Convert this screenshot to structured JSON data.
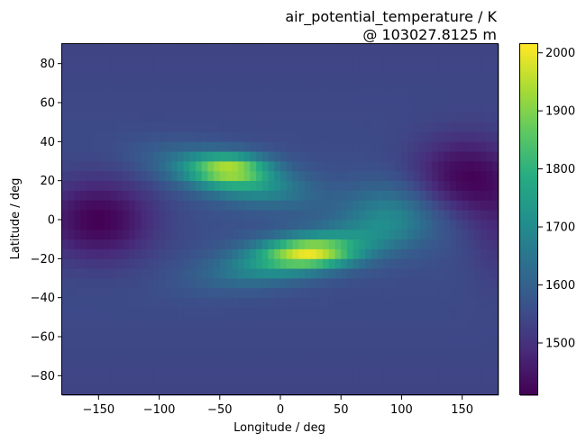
{
  "chart_data": {
    "type": "heatmap",
    "title_lines": [
      "air_potential_temperature / K",
      "@ 103027.8125 m"
    ],
    "xlabel": "Longitude / deg",
    "ylabel": "Latitude / deg",
    "xlim": [
      -180,
      180
    ],
    "ylim": [
      -90,
      90
    ],
    "xticks": [
      -150,
      -100,
      -50,
      0,
      50,
      100,
      150
    ],
    "xtick_labels": [
      "−150",
      "−100",
      "−50",
      "0",
      "50",
      "100",
      "150"
    ],
    "yticks": [
      -80,
      -60,
      -40,
      -20,
      0,
      20,
      40,
      60,
      80
    ],
    "ytick_labels": [
      "−80",
      "−60",
      "−40",
      "−20",
      "0",
      "20",
      "40",
      "60",
      "80"
    ],
    "colormap": "viridis",
    "value_range": [
      1410,
      2015
    ],
    "colorbar_ticks": [
      1500,
      1600,
      1700,
      1800,
      1900,
      2000
    ],
    "colorbar_tick_labels": [
      "1500",
      "1600",
      "1700",
      "1800",
      "1900",
      "2000"
    ],
    "background_value": 1560,
    "features": [
      {
        "name": "northern warm band",
        "lon": -40,
        "lat": 27,
        "peak": 2010
      },
      {
        "name": "southern warm band",
        "lon": 25,
        "lat": -17,
        "peak": 2015
      },
      {
        "name": "western cold core",
        "lon": -150,
        "lat": 0,
        "peak": 1410
      },
      {
        "name": "eastern cold core",
        "lon": 150,
        "lat": 22,
        "peak": 1410
      }
    ],
    "grid": false,
    "legend": "colorbar-right"
  }
}
